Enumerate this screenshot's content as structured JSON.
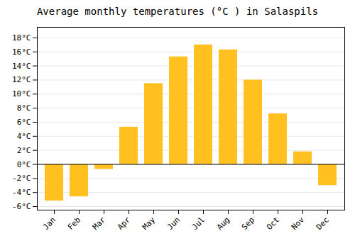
{
  "chart_data": {
    "type": "bar",
    "title": "Average monthly temperatures (°C ) in Salaspils",
    "categories": [
      "Jan",
      "Feb",
      "Mar",
      "Apr",
      "May",
      "Jun",
      "Jul",
      "Aug",
      "Sep",
      "Oct",
      "Nov",
      "Dec"
    ],
    "values": [
      -5.2,
      -4.6,
      -0.7,
      5.3,
      11.5,
      15.3,
      17.0,
      16.3,
      12.0,
      7.2,
      1.8,
      -3.0
    ],
    "color": "#FFC020",
    "ylim": [
      -6.5,
      19.5
    ],
    "yticks": [
      {
        "value": -6,
        "label": "-6°C"
      },
      {
        "value": -4,
        "label": "-4°C"
      },
      {
        "value": -2,
        "label": "-2°C"
      },
      {
        "value": 0,
        "label": "0°C"
      },
      {
        "value": 2,
        "label": "2°C"
      },
      {
        "value": 4,
        "label": "4°C"
      },
      {
        "value": 6,
        "label": "6°C"
      },
      {
        "value": 8,
        "label": "8°C"
      },
      {
        "value": 10,
        "label": "10°C"
      },
      {
        "value": 12,
        "label": "12°C"
      },
      {
        "value": 14,
        "label": "14°C"
      },
      {
        "value": 16,
        "label": "16°C"
      },
      {
        "value": 18,
        "label": "18°C"
      }
    ],
    "grid": true
  }
}
